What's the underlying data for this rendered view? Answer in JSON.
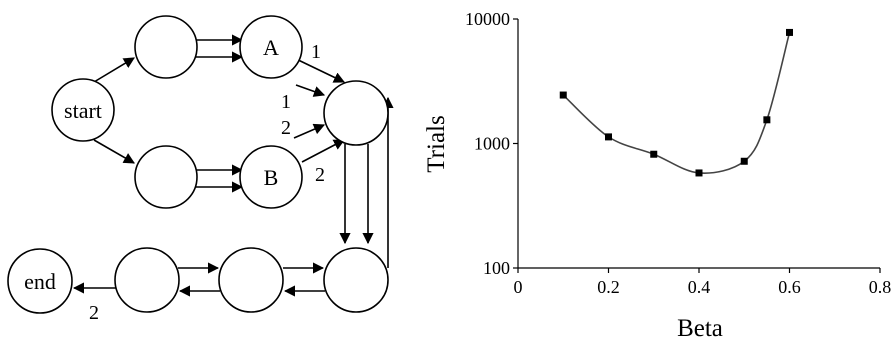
{
  "diagram": {
    "nodes": {
      "start": "start",
      "a": "A",
      "b": "B",
      "end": "end",
      "blank": ""
    },
    "edge_labels": {
      "a_to_mid": "1",
      "left_to_mid_top": "1",
      "left_to_mid_bottom": "2",
      "b_to_mid": "2",
      "to_end": "2"
    }
  },
  "chart_data": {
    "type": "line",
    "scale_y": "log",
    "xlabel": "Beta",
    "ylabel": "Trials",
    "xlim": [
      0,
      0.8
    ],
    "ylim": [
      100,
      10000
    ],
    "x_ticks": [
      "0",
      "0.2",
      "0.4",
      "0.6",
      "0.8"
    ],
    "y_ticks": [
      "100",
      "1000",
      "10000"
    ],
    "grid": false,
    "legend": "none",
    "series": [
      {
        "x": [
          0.1,
          0.2,
          0.3,
          0.4,
          0.5,
          0.55,
          0.6
        ],
        "y": [
          2450,
          1130,
          820,
          580,
          720,
          1550,
          7800
        ]
      }
    ]
  }
}
